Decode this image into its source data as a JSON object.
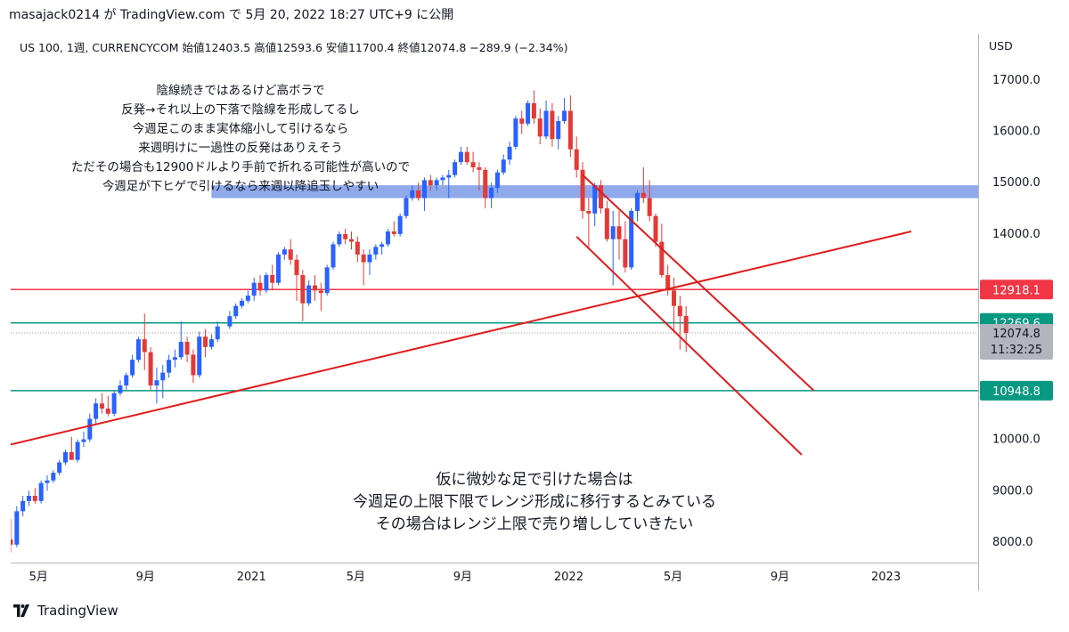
{
  "header": {
    "author": "masajack0214",
    "connector": "が",
    "site": "TradingView.com",
    "connector2": "で",
    "date": "5月 20, 2022 18:27 UTC+9",
    "suffix": "に公開"
  },
  "legend": {
    "symbol": "US 100, 1週, CURRENCYCOM",
    "open_label": "始値",
    "open": "12403.5",
    "high_label": "高値",
    "high": "12593.6",
    "low_label": "安値",
    "low": "11700.4",
    "close_label": "終値",
    "close": "12074.8",
    "change": "−289.9 (−2.34%)"
  },
  "currency": "USD",
  "price_labels": {
    "red_line": "12918.1",
    "green_line_upper": "12269.6",
    "last_price": "12074.8",
    "countdown": "11:32:25",
    "green_line_lower": "10948.8"
  },
  "annotations": {
    "top": [
      "陰線続きではあるけど高ボラで",
      "反発→それ以上の下落で陰線を形成してるし",
      "今週足このまま実体縮小して引けるなら",
      "来週明けに一過性の反発はありえそう",
      "ただその場合も12900ドルより手前で折れる可能性が高いので",
      "今週足が下ヒゲで引けるなら来週以降追玉しやすい"
    ],
    "bottom": [
      "仮に微妙な足で引けた場合は",
      "今週足の上限下限でレンジ形成に移行するとみている",
      "その場合はレンジ上限で売り増ししていきたい"
    ]
  },
  "footer": {
    "brand": "TradingView"
  },
  "colors": {
    "up": "#2962ff",
    "down": "#e53935",
    "red_line": "#f23645",
    "green_line": "#089981",
    "zone": "#7b9ae8",
    "trend": "#e01b1b"
  },
  "chart_data": {
    "type": "candlestick",
    "title": "US 100, 1週, CURRENCYCOM",
    "ylabel": "USD",
    "ylim": [
      7600,
      17900
    ],
    "y_ticks": [
      8000,
      9000,
      10000,
      11000,
      12000,
      13000,
      14000,
      15000,
      16000,
      17000
    ],
    "y_tick_labels": [
      "8000.0",
      "9000.0",
      "10000.0",
      "",
      "",
      "",
      "14000.0",
      "15000.0",
      "16000.0",
      "17000.0"
    ],
    "x_range": [
      "2020-03-30",
      "2023-04-17"
    ],
    "x_ticks": [
      {
        "date": "2020-05-01",
        "label": "5月"
      },
      {
        "date": "2020-09-01",
        "label": "9月"
      },
      {
        "date": "2021-01-01",
        "label": "2021"
      },
      {
        "date": "2021-05-01",
        "label": "5月"
      },
      {
        "date": "2021-09-01",
        "label": "9月"
      },
      {
        "date": "2022-01-01",
        "label": "2022"
      },
      {
        "date": "2022-05-01",
        "label": "5月"
      },
      {
        "date": "2022-09-01",
        "label": "9月"
      },
      {
        "date": "2023-01-01",
        "label": "2023"
      }
    ],
    "horizontal_lines": [
      {
        "price": 12918.1,
        "color": "red"
      },
      {
        "price": 12269.6,
        "color": "green"
      },
      {
        "price": 10948.8,
        "color": "green"
      }
    ],
    "zone": {
      "from": 14700,
      "to": 14950,
      "start": "2020-11-16",
      "end": "2023-04-17"
    },
    "trend_lines": [
      {
        "from": {
          "date": "2020-03-30",
          "price": 9900
        },
        "to": {
          "date": "2023-01-30",
          "price": 14050
        }
      },
      {
        "from": {
          "date": "2022-01-17",
          "price": 15150
        },
        "to": {
          "date": "2022-10-10",
          "price": 10950
        }
      },
      {
        "from": {
          "date": "2022-01-10",
          "price": 13950
        },
        "to": {
          "date": "2022-09-26",
          "price": 9700
        }
      }
    ],
    "last_price": 12074.8,
    "candles": [
      [
        "2020-03-30",
        8050,
        8450,
        7800,
        7950
      ],
      [
        "2020-04-06",
        7950,
        8700,
        7900,
        8600
      ],
      [
        "2020-04-13",
        8600,
        8900,
        8500,
        8800
      ],
      [
        "2020-04-20",
        8800,
        9000,
        8700,
        8900
      ],
      [
        "2020-04-27",
        8900,
        9050,
        8750,
        8800
      ],
      [
        "2020-05-04",
        8800,
        9200,
        8750,
        9150
      ],
      [
        "2020-05-11",
        9150,
        9300,
        9000,
        9200
      ],
      [
        "2020-05-18",
        9200,
        9400,
        9150,
        9350
      ],
      [
        "2020-05-25",
        9350,
        9600,
        9300,
        9550
      ],
      [
        "2020-06-01",
        9550,
        9800,
        9500,
        9750
      ],
      [
        "2020-06-08",
        9750,
        10050,
        9650,
        9600
      ],
      [
        "2020-06-15",
        9600,
        10000,
        9550,
        9950
      ],
      [
        "2020-06-22",
        9950,
        10150,
        9850,
        10000
      ],
      [
        "2020-06-29",
        10000,
        10500,
        9950,
        10400
      ],
      [
        "2020-07-06",
        10400,
        10800,
        10300,
        10700
      ],
      [
        "2020-07-13",
        10700,
        10900,
        10500,
        10600
      ],
      [
        "2020-07-20",
        10600,
        10850,
        10450,
        10500
      ],
      [
        "2020-07-27",
        10500,
        10950,
        10450,
        10900
      ],
      [
        "2020-08-03",
        10900,
        11150,
        10850,
        11050
      ],
      [
        "2020-08-10",
        11050,
        11300,
        10950,
        11250
      ],
      [
        "2020-08-17",
        11250,
        11650,
        11200,
        11550
      ],
      [
        "2020-08-24",
        11550,
        12000,
        11500,
        11950
      ],
      [
        "2020-08-31",
        11950,
        12450,
        11350,
        11700
      ],
      [
        "2020-09-07",
        11700,
        11800,
        10950,
        11050
      ],
      [
        "2020-09-14",
        11050,
        11400,
        10700,
        11150
      ],
      [
        "2020-09-21",
        11150,
        11450,
        10800,
        11300
      ],
      [
        "2020-09-28",
        11300,
        11650,
        11200,
        11550
      ],
      [
        "2020-10-05",
        11550,
        11750,
        11400,
        11600
      ],
      [
        "2020-10-12",
        11600,
        12300,
        11550,
        11900
      ],
      [
        "2020-10-19",
        11900,
        12000,
        11500,
        11650
      ],
      [
        "2020-10-26",
        11650,
        11750,
        11100,
        11250
      ],
      [
        "2020-11-02",
        11250,
        12100,
        11200,
        12000
      ],
      [
        "2020-11-09",
        12000,
        12150,
        11600,
        11800
      ],
      [
        "2020-11-16",
        11800,
        12050,
        11750,
        11950
      ],
      [
        "2020-11-23",
        11950,
        12300,
        11900,
        12200
      ],
      [
        "2020-12-07",
        12200,
        12500,
        12150,
        12400
      ],
      [
        "2020-12-14",
        12400,
        12650,
        12350,
        12600
      ],
      [
        "2020-12-21",
        12600,
        12750,
        12550,
        12700
      ],
      [
        "2020-12-28",
        12700,
        12900,
        12650,
        12800
      ],
      [
        "2021-01-04",
        12800,
        13150,
        12700,
        13050
      ],
      [
        "2021-01-11",
        13050,
        13200,
        12800,
        12900
      ],
      [
        "2021-01-18",
        12900,
        13250,
        12850,
        13200
      ],
      [
        "2021-01-25",
        13200,
        13400,
        12900,
        13050
      ],
      [
        "2021-02-01",
        13050,
        13650,
        13000,
        13600
      ],
      [
        "2021-02-08",
        13600,
        13750,
        13500,
        13700
      ],
      [
        "2021-02-15",
        13700,
        13900,
        13400,
        13500
      ],
      [
        "2021-02-22",
        13500,
        13600,
        12700,
        13200
      ],
      [
        "2021-03-01",
        13200,
        13300,
        12300,
        12650
      ],
      [
        "2021-03-08",
        12650,
        13100,
        12600,
        13000
      ],
      [
        "2021-03-15",
        13000,
        13200,
        12700,
        12900
      ],
      [
        "2021-03-22",
        12900,
        13050,
        12500,
        12850
      ],
      [
        "2021-03-29",
        12850,
        13400,
        12800,
        13350
      ],
      [
        "2021-04-05",
        13350,
        13850,
        13300,
        13800
      ],
      [
        "2021-04-12",
        13800,
        14050,
        13750,
        14000
      ],
      [
        "2021-04-19",
        14000,
        14100,
        13800,
        13900
      ],
      [
        "2021-04-26",
        13900,
        14050,
        13700,
        13850
      ],
      [
        "2021-05-03",
        13850,
        13950,
        13450,
        13600
      ],
      [
        "2021-05-10",
        13600,
        13700,
        13000,
        13450
      ],
      [
        "2021-05-17",
        13450,
        13700,
        13200,
        13600
      ],
      [
        "2021-05-24",
        13600,
        13800,
        13500,
        13750
      ],
      [
        "2021-05-31",
        13750,
        13850,
        13600,
        13800
      ],
      [
        "2021-06-07",
        13800,
        14100,
        13750,
        14050
      ],
      [
        "2021-06-14",
        14050,
        14250,
        13950,
        14000
      ],
      [
        "2021-06-21",
        14000,
        14400,
        13950,
        14350
      ],
      [
        "2021-06-28",
        14350,
        14750,
        14300,
        14700
      ],
      [
        "2021-07-05",
        14700,
        14950,
        14650,
        14850
      ],
      [
        "2021-07-12",
        14850,
        15000,
        14650,
        14700
      ],
      [
        "2021-07-19",
        14700,
        15100,
        14450,
        15050
      ],
      [
        "2021-07-26",
        15050,
        15150,
        14850,
        14950
      ],
      [
        "2021-08-02",
        14950,
        15100,
        14850,
        15050
      ],
      [
        "2021-08-09",
        15050,
        15150,
        14950,
        15100
      ],
      [
        "2021-08-16",
        15100,
        15250,
        14700,
        15150
      ],
      [
        "2021-08-23",
        15150,
        15450,
        15100,
        15400
      ],
      [
        "2021-08-30",
        15400,
        15700,
        15350,
        15600
      ],
      [
        "2021-09-06",
        15600,
        15700,
        15350,
        15400
      ],
      [
        "2021-09-13",
        15400,
        15600,
        15200,
        15300
      ],
      [
        "2021-09-20",
        15300,
        15400,
        14850,
        15250
      ],
      [
        "2021-09-27",
        15250,
        15300,
        14500,
        14700
      ],
      [
        "2021-10-04",
        14700,
        15000,
        14500,
        14900
      ],
      [
        "2021-10-11",
        14900,
        15250,
        14800,
        15200
      ],
      [
        "2021-10-18",
        15200,
        15550,
        15150,
        15450
      ],
      [
        "2021-10-25",
        15450,
        15800,
        15350,
        15700
      ],
      [
        "2021-11-01",
        15700,
        16300,
        15650,
        16250
      ],
      [
        "2021-11-08",
        16250,
        16400,
        15950,
        16150
      ],
      [
        "2021-11-15",
        16150,
        16600,
        16100,
        16550
      ],
      [
        "2021-11-22",
        16550,
        16800,
        16150,
        16250
      ],
      [
        "2021-11-29",
        16250,
        16450,
        15750,
        15900
      ],
      [
        "2021-12-06",
        15900,
        16600,
        15850,
        16400
      ],
      [
        "2021-12-13",
        16400,
        16550,
        15700,
        15850
      ],
      [
        "2021-12-20",
        15850,
        16300,
        15650,
        16200
      ],
      [
        "2021-12-27",
        16200,
        16650,
        16150,
        16400
      ],
      [
        "2022-01-03",
        16400,
        16700,
        15500,
        15650
      ],
      [
        "2022-01-10",
        15650,
        15900,
        15100,
        15250
      ],
      [
        "2022-01-17",
        15250,
        15400,
        14300,
        14450
      ],
      [
        "2022-01-24",
        14450,
        14700,
        13700,
        14400
      ],
      [
        "2022-01-31",
        14400,
        15000,
        14150,
        14950
      ],
      [
        "2022-02-07",
        14950,
        15050,
        14400,
        14500
      ],
      [
        "2022-02-14",
        14500,
        14650,
        13850,
        13900
      ],
      [
        "2022-02-21",
        13900,
        14450,
        13000,
        14150
      ],
      [
        "2022-02-28",
        14150,
        14450,
        13500,
        13900
      ],
      [
        "2022-03-07",
        13900,
        14250,
        13250,
        13350
      ],
      [
        "2022-03-14",
        13350,
        14500,
        13300,
        14450
      ],
      [
        "2022-03-21",
        14450,
        14850,
        14250,
        14800
      ],
      [
        "2022-03-28",
        14800,
        15300,
        14600,
        14700
      ],
      [
        "2022-04-04",
        14700,
        15050,
        14250,
        14350
      ],
      [
        "2022-04-11",
        14350,
        14400,
        13750,
        13850
      ],
      [
        "2022-04-18",
        13850,
        14200,
        13150,
        13200
      ],
      [
        "2022-04-25",
        13200,
        13400,
        12800,
        12900
      ],
      [
        "2022-05-02",
        12900,
        13150,
        12100,
        12600
      ],
      [
        "2022-05-09",
        12600,
        12800,
        11750,
        12400
      ],
      [
        "2022-05-16",
        12403.5,
        12593.6,
        11700.4,
        12074.8
      ]
    ]
  }
}
